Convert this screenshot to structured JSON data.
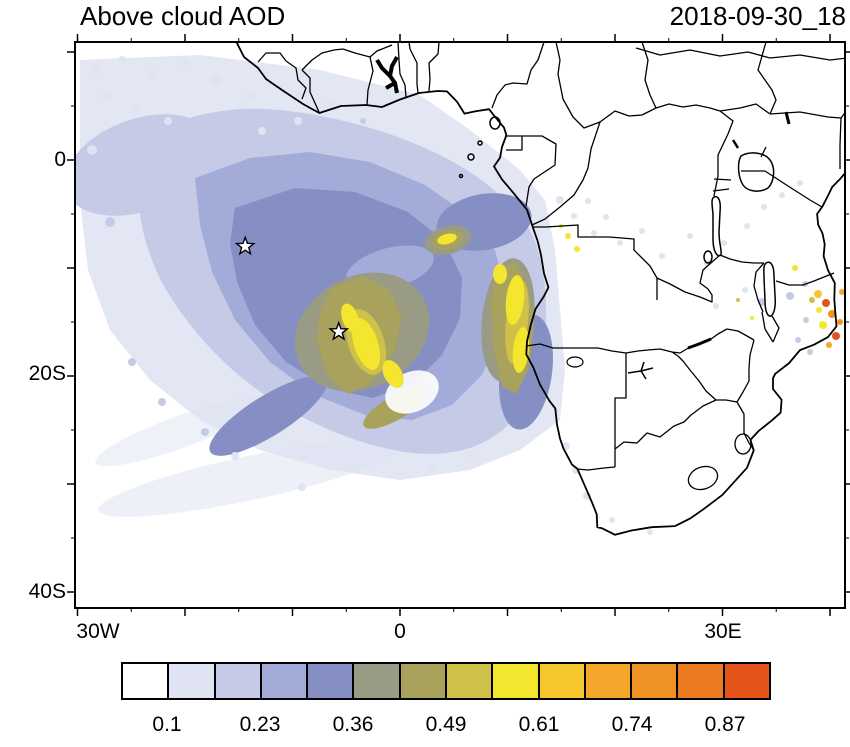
{
  "header": {
    "title": "Above cloud AOD",
    "date": "2018-09-30_18"
  },
  "axes": {
    "lat_ticks": [
      {
        "label": "0"
      },
      {
        "label": "20S"
      },
      {
        "label": "40S"
      }
    ],
    "lon_ticks": [
      {
        "label": "30W"
      },
      {
        "label": "0"
      },
      {
        "label": "30E"
      }
    ]
  },
  "colorbar": {
    "tick_labels": [
      "0.1",
      "0.23",
      "0.36",
      "0.49",
      "0.61",
      "0.74",
      "0.87"
    ],
    "colors": [
      "#ffffff",
      "#e0e3f2",
      "#c5cbe7",
      "#a3abd8",
      "#868fc4",
      "#999b84",
      "#a8a25c",
      "#cfc04a",
      "#f4e52f",
      "#f6c62e",
      "#f4a62a",
      "#f09126",
      "#ea7b21",
      "#e4541a"
    ]
  },
  "chart_data": {
    "type": "heatmap",
    "title": "Above cloud AOD",
    "timestamp": "2018-09-30_18",
    "projection": "lat-lon map of the southeast Atlantic and southern Africa",
    "lon_range": [
      -30,
      41
    ],
    "lat_range": [
      -42,
      11
    ],
    "x_ticks": [
      "30W",
      "0",
      "30E"
    ],
    "y_ticks": [
      "0",
      "20S",
      "40S"
    ],
    "colorbar_tick_values": [
      0.1,
      0.23,
      0.36,
      0.49,
      0.61,
      0.74,
      0.87
    ],
    "colorbar_n_cells": 14,
    "markers": [
      {
        "symbol": "star",
        "lon": -14.4,
        "lat": -8.0
      },
      {
        "symbol": "star",
        "lon": -5.7,
        "lat": -15.9
      }
    ],
    "field_summary": [
      {
        "region": "broad aerosol plume over SE Atlantic, ~25W-13E, 2N-27S",
        "aod": "0.1-0.35"
      },
      {
        "region": "plume core west of Angola, ~8W-2E, 12S-22S",
        "aod": "0.45-0.65"
      },
      {
        "region": "coastal band along Angola/Namibia, ~9-13E, 9S-23S",
        "aod": "0.45-0.65"
      },
      {
        "region": "scattered high-AOD pixels near Mozambique/Tanzania coast, ~38-42E, 8S-16S",
        "aod": "0.6-0.95"
      },
      {
        "region": "scattered light pixels over central and eastern Africa",
        "aod": "0.1-0.2"
      }
    ]
  }
}
